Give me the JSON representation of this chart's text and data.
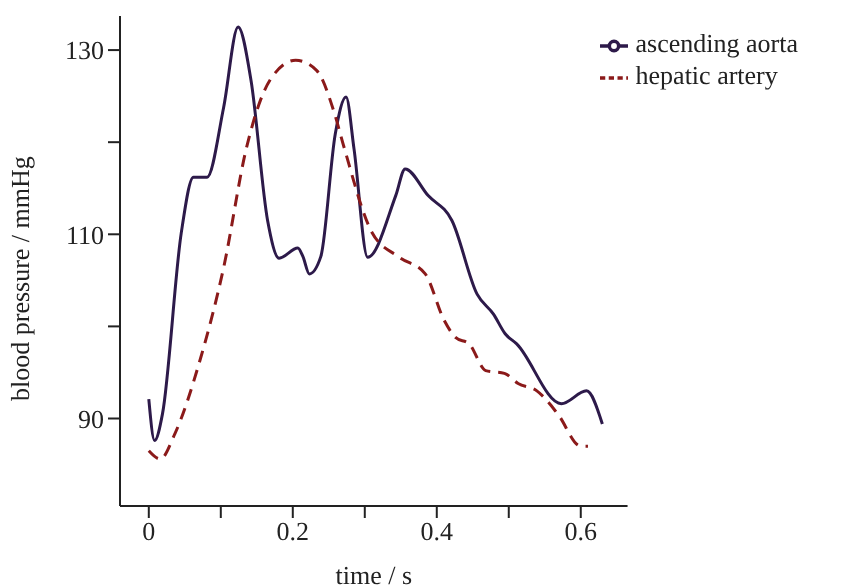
{
  "chart_data": {
    "type": "line",
    "xlabel": "time / s",
    "ylabel": "blood pressure / mmHg",
    "xlim": [
      -0.04,
      0.665
    ],
    "ylim": [
      80.5,
      133.7
    ],
    "xticks": [
      0,
      {
        "value": 0.1,
        "label": null
      },
      0.2,
      {
        "value": 0.3,
        "label": null
      },
      0.4,
      {
        "value": 0.5,
        "label": null
      },
      0.6
    ],
    "yticks": [
      90,
      {
        "value": 100,
        "label": null
      },
      110,
      {
        "value": 120,
        "label": null
      },
      130
    ],
    "grid": false,
    "legend": "top right",
    "marker": "none",
    "series": [
      {
        "name": "ascending aorta",
        "color": "#2d1a4a",
        "line_style": "solid",
        "x": [
          0,
          0.008,
          0.019,
          0.045,
          0.062,
          0.081,
          0.104,
          0.124,
          0.142,
          0.165,
          0.181,
          0.207,
          0.214,
          0.223,
          0.239,
          0.259,
          0.274,
          0.285,
          0.304,
          0.343,
          0.356,
          0.388,
          0.421,
          0.456,
          0.479,
          0.495,
          0.511,
          0.573,
          0.608,
          0.63
        ],
        "values": [
          92.1,
          87.6,
          90.5,
          110.1,
          116.2,
          116.2,
          123.8,
          132.5,
          126.7,
          111.5,
          107.4,
          108.5,
          107.6,
          105.7,
          107.6,
          120.9,
          124.9,
          119.3,
          107.5,
          114.2,
          117.1,
          114.2,
          111.5,
          103.5,
          101.3,
          99.2,
          98.1,
          91.6,
          93.0,
          89.4
        ]
      },
      {
        "name": "hepatic artery",
        "color": "#8b1a1a",
        "line_style": "dashed",
        "x": [
          0,
          0.016,
          0.036,
          0.071,
          0.104,
          0.136,
          0.168,
          0.204,
          0.233,
          0.258,
          0.271,
          0.31,
          0.348,
          0.384,
          0.41,
          0.426,
          0.445,
          0.468,
          0.494,
          0.513,
          0.539,
          0.568,
          0.6,
          0.61
        ],
        "values": [
          86.5,
          85.6,
          88.3,
          96.3,
          106.4,
          119.5,
          126.7,
          128.9,
          127.8,
          123.1,
          119.5,
          110.2,
          107.5,
          105.7,
          100.7,
          98.8,
          98.1,
          95.2,
          94.9,
          93.8,
          93.0,
          90.5,
          87.0,
          87.0
        ]
      }
    ]
  }
}
